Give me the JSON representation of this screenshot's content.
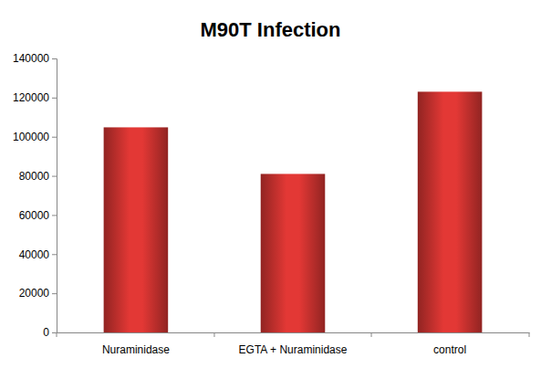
{
  "chart_data": {
    "type": "bar",
    "title": "M90T Infection",
    "categories": [
      "Nuraminidase",
      "EGTA + Nuraminidase",
      "control"
    ],
    "values": [
      104800,
      81000,
      123000
    ],
    "color": "#c8312f",
    "ylim": [
      0,
      140000
    ],
    "yticks": [
      0,
      20000,
      40000,
      60000,
      80000,
      100000,
      120000,
      140000
    ],
    "grid": false
  }
}
